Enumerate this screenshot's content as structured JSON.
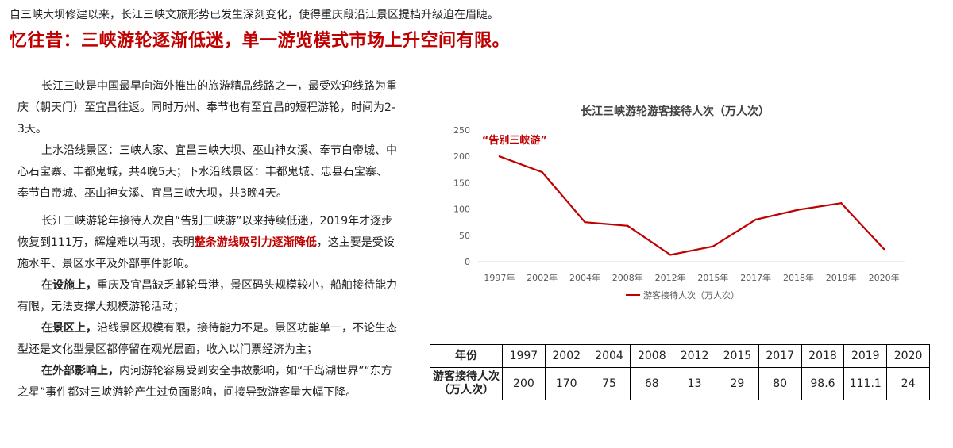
{
  "intro": "自三峡大坝修建以来，长江三峡文旅形势已发生深刻变化，使得重庆段沿江景区提档升级迫在眉睫。",
  "headline": "忆往昔：三峡游轮逐渐低迷，单一游览模式市场上升空间有限。",
  "body": {
    "p1": "长江三峡是中国最早向海外推出的旅游精品线路之一，最受欢迎线路为重庆（朝天门）至宜昌往返。同时万州、奉节也有至宜昌的短程游轮，时间为2-3天。",
    "p2": "上水沿线景区：三峡人家、宜昌三峡大坝、巫山神女溪、奉节白帝城、中心石宝寨、丰都鬼城，共4晚5天；下水沿线景区：丰都鬼城、忠县石宝寨、奉节白帝城、巫山神女溪、宜昌三峡大坝，共3晚4天。",
    "p3_pre": "长江三峡游轮年接待人次自“告别三峡游”以来持续低迷，2019年才逐步恢复到111万，辉煌难以再现，表明",
    "p3_highlight": "整条游线吸引力逐渐降低",
    "p3_post": "，这主要是受设施水平、景区水平及外部事件影响。",
    "p4_bold": "在设施上，",
    "p4_text": "重庆及宜昌缺乏邮轮母港，景区码头规模较小，船舶接待能力有限，无法支撑大规模游轮活动；",
    "p5_bold": "在景区上，",
    "p5_text": "沿线景区规模有限，接待能力不足。景区功能单一，不论生态型还是文化型景区都停留在观光层面，收入以门票经济为主；",
    "p6_bold": "在外部影响上，",
    "p6_text": "内河游轮容易受到安全事故影响，如“千岛湖世界”“东方之星”事件都对三峡游轮产生过负面影响，间接导致游客量大幅下降。"
  },
  "chart_data": {
    "type": "line",
    "title": "长江三峡游轮游客接待人次（万人次）",
    "categories": [
      "1997年",
      "2002年",
      "2004年",
      "2008年",
      "2012年",
      "2015年",
      "2017年",
      "2018年",
      "2019年",
      "2020年"
    ],
    "series": [
      {
        "name": "游客接待人次（万人次）",
        "values": [
          200,
          170,
          75,
          68,
          13,
          29,
          80,
          98.6,
          111.1,
          24
        ]
      }
    ],
    "ylim": [
      0,
      250
    ],
    "yticks": [
      0,
      50,
      100,
      150,
      200,
      250
    ],
    "grid": false,
    "legend": "bottom",
    "annotation": "“告别三峡游”",
    "line_color": "#c00000",
    "annotation_color": "#c00000"
  },
  "table": {
    "header_label": "年份",
    "years": [
      "1997",
      "2002",
      "2004",
      "2008",
      "2012",
      "2015",
      "2017",
      "2018",
      "2019",
      "2020"
    ],
    "row_label": "游客接待人次（万人次）",
    "values": [
      "200",
      "170",
      "75",
      "68",
      "13",
      "29",
      "80",
      "98.6",
      "111.1",
      "24"
    ]
  }
}
